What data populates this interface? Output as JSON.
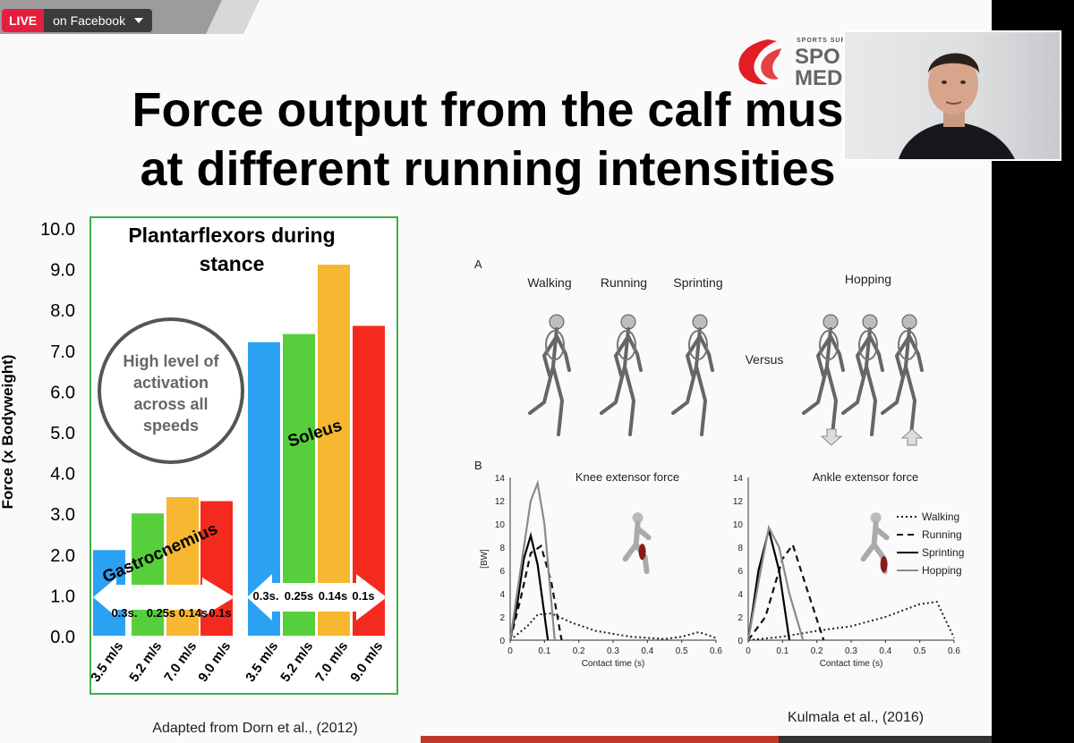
{
  "broadcast": {
    "live_label": "LIVE",
    "destination": "on Facebook"
  },
  "logo": {
    "line0": "SPORTS SURGERY",
    "line1": "SPO",
    "line2": "MED",
    "color": "#e31d24"
  },
  "slide": {
    "title_line1": "Force output from the calf mus",
    "title_line2": "at different running intensities",
    "left_caption": "Adapted from Dorn et al., (2012)",
    "right_caption": "Kulmala et al., (2016)"
  },
  "chart_data": [
    {
      "type": "bar",
      "title": "Plantarflexors during stance",
      "ylabel": "Force (x Bodyweight)",
      "ylim": [
        0,
        10
      ],
      "yticks": [
        "0.0",
        "1.0",
        "2.0",
        "3.0",
        "4.0",
        "5.0",
        "6.0",
        "7.0",
        "8.0",
        "9.0",
        "10.0"
      ],
      "categories": [
        "3.5 m/s",
        "5.2 m/s",
        "7.0 m/s",
        "9.0 m/s",
        "3.5 m/s",
        "5.2 m/s",
        "7.0 m/s",
        "9.0 m/s"
      ],
      "values": [
        2.1,
        3.0,
        3.4,
        3.3,
        7.2,
        7.4,
        9.1,
        7.6
      ],
      "colors": [
        "#2ba1f4",
        "#57cf3d",
        "#f7b731",
        "#f52a1e",
        "#2ba1f4",
        "#57cf3d",
        "#f7b731",
        "#f52a1e"
      ],
      "group_labels": [
        "Gastrocnemius",
        "Soleus"
      ],
      "contact_times": [
        [
          "0.3s.",
          "0.25s",
          "0.14s",
          "0.1s"
        ],
        [
          "0.3s.",
          "0.25s",
          "0.14s",
          "0.1s"
        ]
      ],
      "annotation": [
        "High level of",
        "activation",
        "across all",
        "speeds"
      ],
      "border_color": "#3cb043"
    },
    {
      "type": "line",
      "panel_a_label": "A",
      "panel_b_label": "B",
      "movements": [
        "Walking",
        "Running",
        "Sprinting",
        "Hopping"
      ],
      "versus_label": "Versus",
      "plots": [
        {
          "title": "Knee extensor force",
          "xlabel": "Contact time (s)",
          "ylabel": "[BW]",
          "xlim": [
            0,
            0.6
          ],
          "ylim": [
            0,
            14
          ],
          "xticks": [
            "0",
            "0.1",
            "0.2",
            "0.3",
            "0.4",
            "0.5",
            "0.6"
          ],
          "yticks": [
            "0",
            "2",
            "4",
            "6",
            "8",
            "10",
            "12",
            "14"
          ],
          "series": [
            {
              "name": "Walking",
              "style": "dotted",
              "x": [
                0,
                0.05,
                0.08,
                0.12,
                0.18,
                0.25,
                0.35,
                0.45,
                0.5,
                0.55,
                0.6
              ],
              "y": [
                0,
                1.2,
                2.2,
                2.3,
                1.5,
                0.8,
                0.3,
                0.1,
                0.3,
                0.7,
                0.2
              ]
            },
            {
              "name": "Running",
              "style": "dashed",
              "x": [
                0,
                0.03,
                0.06,
                0.09,
                0.12,
                0.15
              ],
              "y": [
                0,
                3.5,
                7.5,
                8.1,
                5,
                0
              ]
            },
            {
              "name": "Sprinting",
              "style": "solid-black",
              "x": [
                0,
                0.02,
                0.04,
                0.06,
                0.08,
                0.11
              ],
              "y": [
                0,
                3,
                7,
                9,
                6.5,
                0
              ]
            },
            {
              "name": "Hopping",
              "style": "solid-gray",
              "x": [
                0,
                0.03,
                0.06,
                0.08,
                0.1,
                0.13
              ],
              "y": [
                0,
                6,
                12,
                13.5,
                10,
                0
              ]
            }
          ]
        },
        {
          "title": "Ankle extensor force",
          "xlabel": "Contact time (s)",
          "ylabel": "",
          "xlim": [
            0,
            0.6
          ],
          "ylim": [
            0,
            14
          ],
          "xticks": [
            "0",
            "0.1",
            "0.2",
            "0.3",
            "0.4",
            "0.5",
            "0.6"
          ],
          "yticks": [
            "0",
            "2",
            "4",
            "6",
            "8",
            "10",
            "12",
            "14"
          ],
          "series": [
            {
              "name": "Walking",
              "style": "dotted",
              "x": [
                0,
                0.1,
                0.2,
                0.3,
                0.4,
                0.5,
                0.55,
                0.6
              ],
              "y": [
                0,
                0.3,
                0.8,
                1.2,
                2,
                3.1,
                3.3,
                0.2
              ]
            },
            {
              "name": "Running",
              "style": "dashed",
              "x": [
                0,
                0.05,
                0.1,
                0.13,
                0.17,
                0.22
              ],
              "y": [
                0,
                2,
                7,
                8.2,
                4.5,
                0
              ]
            },
            {
              "name": "Sprinting",
              "style": "solid-black",
              "x": [
                0,
                0.03,
                0.06,
                0.09,
                0.12
              ],
              "y": [
                0,
                6,
                9.5,
                6,
                0
              ]
            },
            {
              "name": "Hopping",
              "style": "solid-gray",
              "x": [
                0,
                0.03,
                0.06,
                0.09,
                0.12,
                0.16
              ],
              "y": [
                0,
                5,
                9.7,
                8,
                4,
                0
              ]
            }
          ],
          "legend": [
            "Walking",
            "Running",
            "Sprinting",
            "Hopping"
          ]
        }
      ]
    }
  ]
}
